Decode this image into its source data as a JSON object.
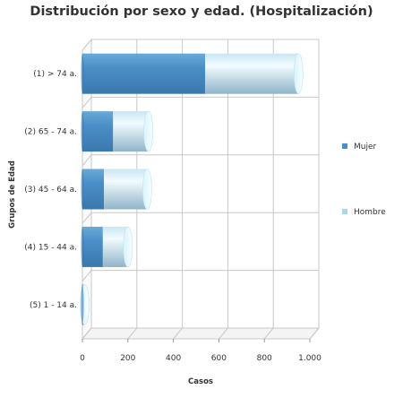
{
  "chart_data": {
    "type": "bar",
    "orientation": "horizontal",
    "stacked": true,
    "three_d": true,
    "title": "Distribución por sexo y edad. (Hospitalización)",
    "xlabel": "Casos",
    "ylabel": "Grupos de Edad",
    "xlim": [
      0,
      1000
    ],
    "xticks": [
      0,
      200,
      400,
      600,
      800,
      1000
    ],
    "xtick_labels": [
      "0",
      "200",
      "400",
      "600",
      "800",
      "1.000"
    ],
    "grid": true,
    "legend_position": "right",
    "categories": [
      "(1) > 74 a.",
      "(2) 65 - 74 a.",
      "(3) 45 - 64 a.",
      "(4) 15 - 44 a.",
      "(5) 1 - 14 a."
    ],
    "series": [
      {
        "name": "Mujer",
        "color": "#4a8fc7",
        "values": [
          540,
          135,
          95,
          90,
          5
        ]
      },
      {
        "name": "Hombre",
        "color": "#a8d8f0",
        "values": [
          410,
          155,
          190,
          110,
          5
        ]
      }
    ]
  }
}
